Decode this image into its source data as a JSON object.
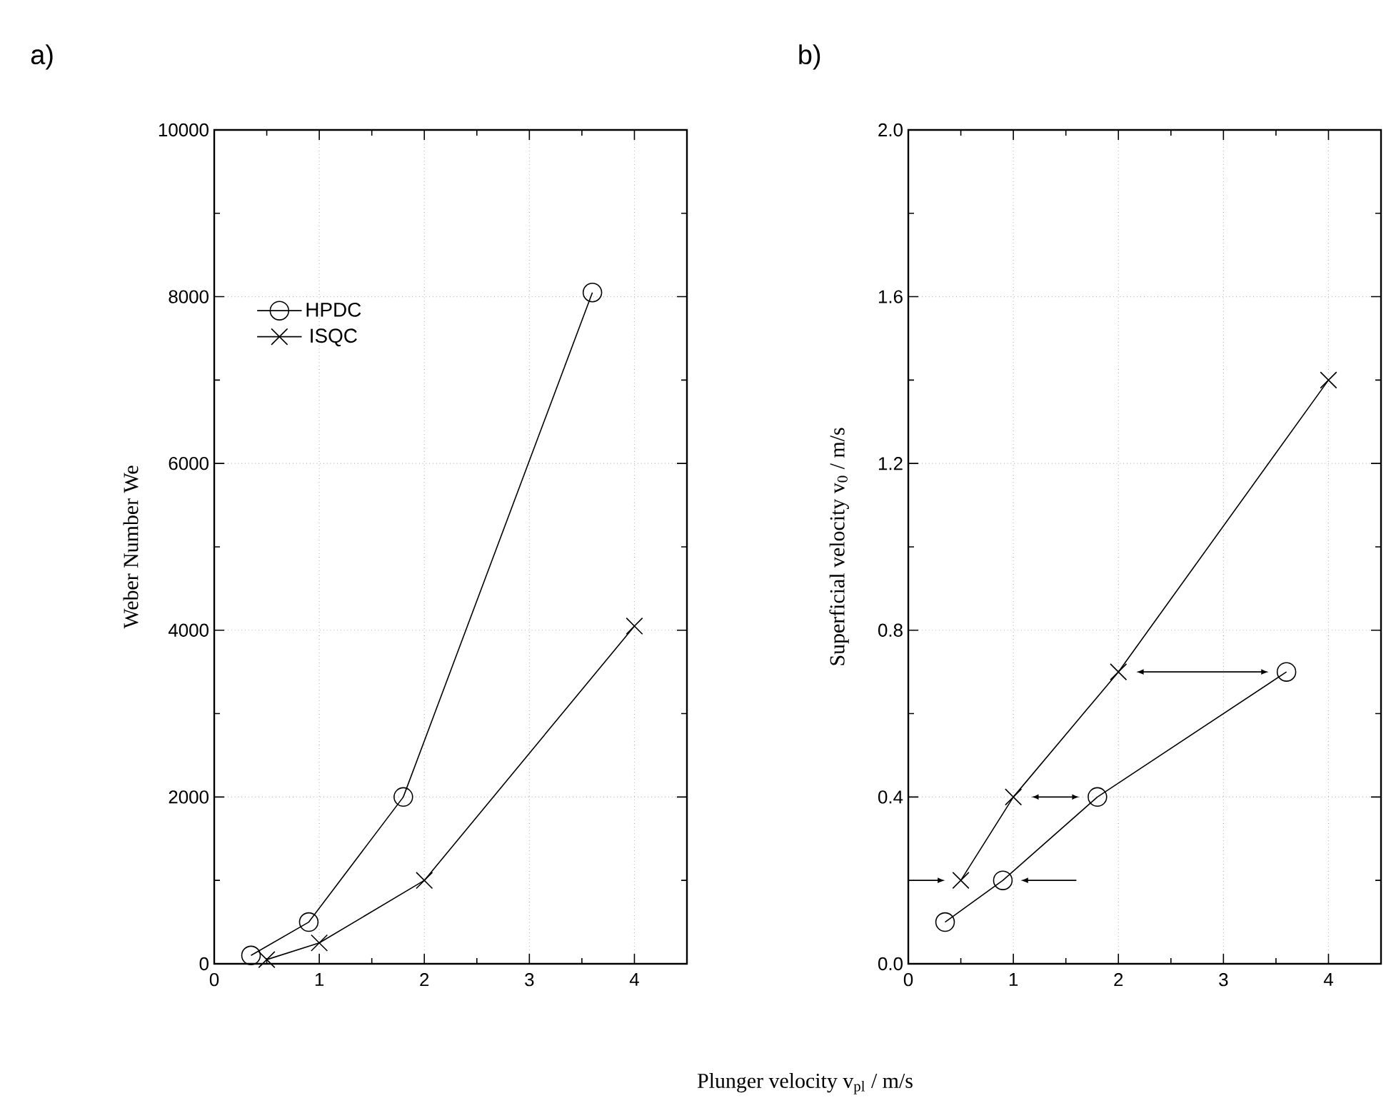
{
  "chart_data": [
    {
      "type": "line",
      "title": "a)",
      "xlabel": "Plunger velocity v$_{pl}$ / m/s",
      "ylabel": "Weber Number We",
      "xlim": [
        0,
        4.5
      ],
      "xticks": [
        0,
        1,
        2,
        3,
        4
      ],
      "ylim": [
        0,
        10000
      ],
      "yticks": [
        0,
        2000,
        4000,
        6000,
        8000,
        10000
      ],
      "grid": true,
      "legend": "top left",
      "line_style": "solid",
      "series": [
        {
          "name": "HPDC",
          "color": "#000000",
          "marker": "circle",
          "x": [
            0.35,
            0.9,
            1.8,
            3.6
          ],
          "values": [
            100,
            500,
            2000,
            8050
          ]
        },
        {
          "name": "ISQC",
          "color": "#000000",
          "marker": "cross",
          "x": [
            0.5,
            1,
            2,
            4
          ],
          "values": [
            50,
            250,
            1000,
            4050
          ]
        }
      ]
    },
    {
      "type": "line",
      "title": "b)",
      "ylabel": "Superficial velocity v$_{0}$ / m/s",
      "xlim": [
        0,
        4.5
      ],
      "xticks": [
        0,
        1,
        2,
        3,
        4
      ],
      "ylim": [
        0,
        2.0
      ],
      "yticks": [
        {
          "value": 0,
          "label": "0.0"
        },
        0.4,
        0.8,
        1.2,
        1.6,
        {
          "value": 2,
          "label": "2.0"
        }
      ],
      "grid": true,
      "line_style": "solid",
      "series": [
        {
          "color": "#000000",
          "marker": "circle",
          "x": [
            0.35,
            0.9,
            1.8,
            3.6
          ],
          "values": [
            0.1,
            0.2,
            0.4,
            0.7
          ]
        },
        {
          "color": "#000000",
          "marker": "cross",
          "x": [
            0.5,
            1,
            2,
            4
          ],
          "values": [
            0.2,
            0.4,
            0.7,
            1.4
          ]
        }
      ]
    }
  ]
}
